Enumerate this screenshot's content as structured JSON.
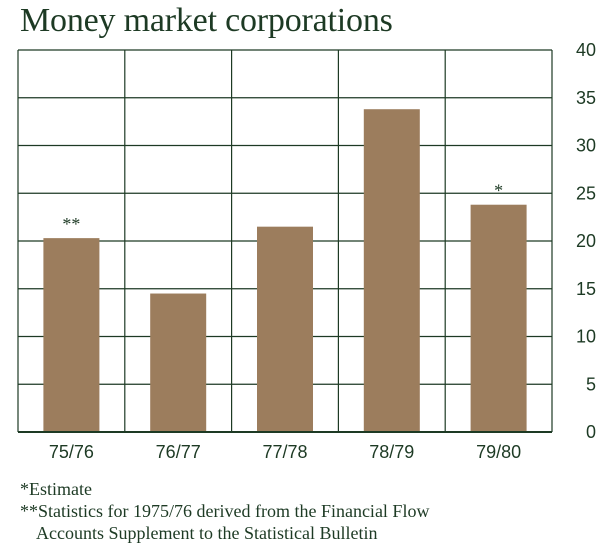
{
  "chart_data": {
    "type": "bar",
    "title": "Money market corporations",
    "categories": [
      "75/76",
      "76/77",
      "77/78",
      "78/79",
      "79/80"
    ],
    "values": [
      20.3,
      14.5,
      21.5,
      33.8,
      23.8
    ],
    "bar_markers": [
      "**",
      "",
      "",
      "",
      "*"
    ],
    "ylim": [
      0,
      40
    ],
    "yticks": [
      0,
      5,
      10,
      15,
      20,
      25,
      30,
      35,
      40
    ],
    "grid": true,
    "bar_color": "#9c7d5d",
    "grid_color": "#1d3a24"
  },
  "footnotes": {
    "estimate": "*Estimate",
    "statistics_line1": "**Statistics for 1975/76 derived from the Financial Flow",
    "statistics_line2": "Accounts Supplement to the Statistical Bulletin"
  }
}
